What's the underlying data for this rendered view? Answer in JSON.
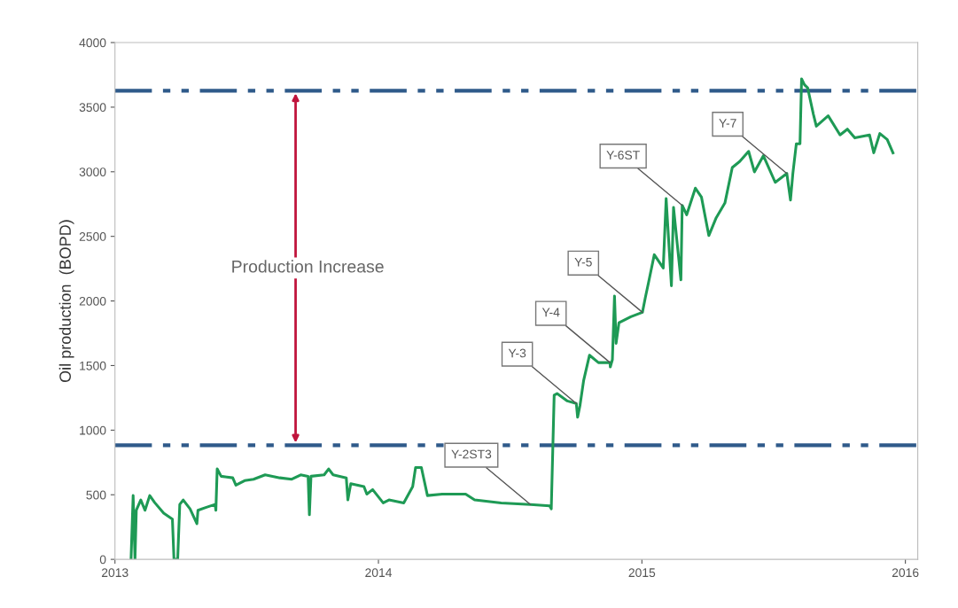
{
  "chart_data": {
    "type": "line",
    "ylabel": "Oil production  (BOPD)",
    "x": [
      2013.061,
      2013.069,
      2013.076,
      2013.081,
      2013.098,
      2013.114,
      2013.132,
      2013.151,
      2013.185,
      2013.218,
      2013.224,
      2013.238,
      2013.246,
      2013.259,
      2013.285,
      2013.311,
      2013.315,
      2013.347,
      2013.38,
      2013.383,
      2013.388,
      2013.403,
      2013.447,
      2013.459,
      2013.492,
      2013.526,
      2013.57,
      2013.626,
      2013.671,
      2013.705,
      2013.733,
      2013.738,
      2013.744,
      2013.794,
      2013.811,
      2013.828,
      2013.878,
      2013.884,
      2013.895,
      2013.945,
      2013.956,
      2013.978,
      2014.018,
      2014.04,
      2014.096,
      2014.13,
      2014.141,
      2014.163,
      2014.186,
      2014.242,
      2014.331,
      2014.365,
      2014.466,
      2014.577,
      2014.65,
      2014.656,
      2014.667,
      2014.678,
      2014.717,
      2014.751,
      2014.756,
      2014.765,
      2014.779,
      2014.801,
      2014.835,
      2014.879,
      2014.88,
      2014.888,
      2014.896,
      2014.902,
      2014.913,
      2014.958,
      2015.002,
      2015.013,
      2015.025,
      2015.047,
      2015.081,
      2015.092,
      2015.112,
      2015.12,
      2015.148,
      2015.153,
      2015.17,
      2015.203,
      2015.226,
      2015.254,
      2015.282,
      2015.315,
      2015.343,
      2015.371,
      2015.405,
      2015.427,
      2015.461,
      2015.506,
      2015.55,
      2015.564,
      2015.573,
      2015.586,
      2015.6,
      2015.606,
      2015.617,
      2015.629,
      2015.651,
      2015.662,
      2015.707,
      2015.752,
      2015.78,
      2015.808,
      2015.864,
      2015.88,
      2015.903,
      2015.931,
      2015.953
    ],
    "series": [
      {
        "color": "#1e9a55",
        "values": [
          0,
          494,
          0,
          380,
          460,
          380,
          494,
          439,
          357,
          311,
          0,
          0,
          425,
          460,
          391,
          276,
          380,
          403,
          425,
          380,
          700,
          643,
          631,
          574,
          609,
          620,
          654,
          631,
          620,
          654,
          643,
          345,
          643,
          654,
          700,
          654,
          631,
          460,
          585,
          563,
          505,
          540,
          437,
          460,
          437,
          563,
          711,
          711,
          494,
          505,
          505,
          460,
          437,
          425,
          414,
          391,
          1271,
          1283,
          1226,
          1207,
          1100,
          1191,
          1386,
          1580,
          1523,
          1523,
          1489,
          1546,
          2038,
          1672,
          1832,
          1878,
          1912,
          2026,
          2141,
          2358,
          2255,
          2792,
          2118,
          2724,
          2163,
          2740,
          2667,
          2873,
          2804,
          2506,
          2644,
          2758,
          3033,
          3079,
          3158,
          2999,
          3124,
          2918,
          2987,
          2781,
          2987,
          3216,
          3216,
          3719,
          3673,
          3650,
          3444,
          3353,
          3433,
          3285,
          3330,
          3262,
          3285,
          3147,
          3296,
          3250,
          3147
        ]
      }
    ],
    "xlim": [
      2013,
      2016.047
    ],
    "xticks": [
      2013,
      2014,
      2015,
      2016
    ],
    "ylim": [
      0,
      4000
    ],
    "yticks": [
      0,
      500,
      1000,
      1500,
      2000,
      2500,
      3000,
      3500,
      4000
    ],
    "ref_lines": [
      {
        "axis": "y",
        "value": 3627,
        "color": "#2f5a8a",
        "line_style": "dashed"
      },
      {
        "axis": "y",
        "value": 883,
        "color": "#2f5a8a",
        "line_style": "dashed"
      }
    ],
    "annotations": [
      "Production Increase",
      {
        "text": "Y-2ST3",
        "x": 2014.577,
        "y": 425
      },
      {
        "text": "Y-3",
        "x": 2014.751,
        "y": 1207
      },
      {
        "text": "Y-4",
        "x": 2014.879,
        "y": 1523
      },
      {
        "text": "Y-5",
        "x": 2015.002,
        "y": 1912
      },
      {
        "text": "Y-6ST",
        "x": 2015.153,
        "y": 2740
      },
      {
        "text": "Y-7",
        "x": 2015.55,
        "y": 2987
      }
    ],
    "grid": false,
    "legend": false,
    "marker": "none",
    "line_style": "solid"
  }
}
